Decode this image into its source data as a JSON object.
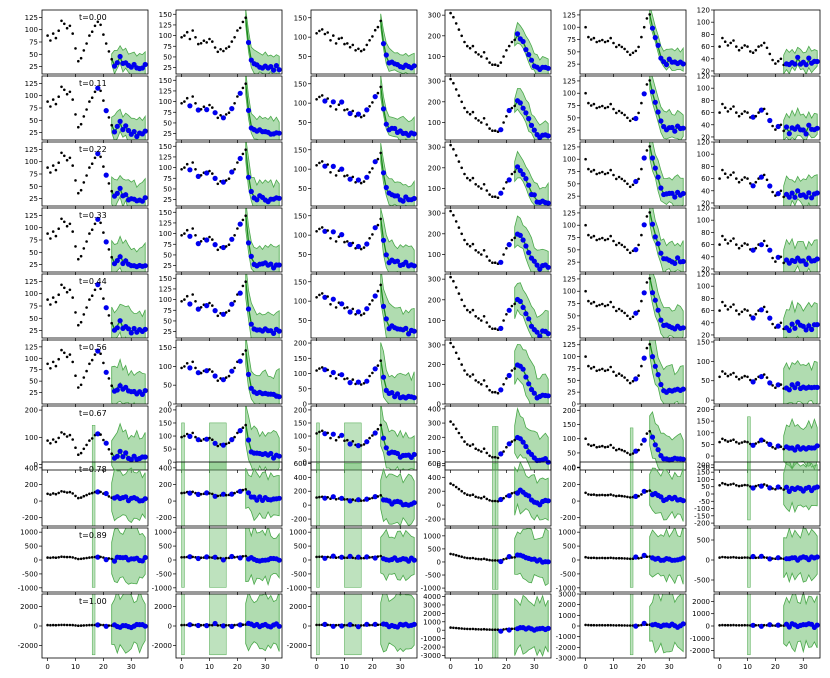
{
  "figure": {
    "rows": 10,
    "cols": 6,
    "row_labels": [
      "t=0.00",
      "t=0.11",
      "t=0.22",
      "t=0.33",
      "t=0.44",
      "t=0.56",
      "t=0.67",
      "t=0.78",
      "t=0.89",
      "t=1.00"
    ],
    "colors": {
      "black_points": "#000000",
      "blue_points": "#0000ee",
      "band_fill": "#6fbf6f",
      "band_stroke": "#4aa84a",
      "mean_line": "#1a8a1a",
      "axis": "#000000"
    }
  },
  "chart_data": {
    "type": "scatter",
    "title": "",
    "xlabel": "",
    "ylabel": "",
    "grid": false,
    "x_ticks": [
      0,
      10,
      20,
      30
    ],
    "xlim": [
      -2,
      36
    ],
    "series_columns": [
      {
        "observed": [
          88,
          78,
          92,
          83,
          98,
          118,
          112,
          103,
          108,
          92,
          62,
          36,
          42,
          58,
          72,
          88,
          96,
          108,
          116,
          110,
          90,
          72,
          56,
          40,
          28,
          34,
          44,
          30,
          36,
          26,
          24,
          26,
          20,
          24,
          22,
          26
        ],
        "forecast_window": [
          16,
          35
        ],
        "forecast_start": 24
      },
      {
        "observed": [
          96,
          100,
          108,
          92,
          112,
          96,
          80,
          82,
          88,
          84,
          92,
          86,
          72,
          62,
          68,
          64,
          70,
          74,
          86,
          96,
          112,
          118,
          132,
          142,
          80,
          42,
          32,
          28,
          30,
          26,
          28,
          24,
          28,
          22,
          26,
          24
        ],
        "forecast_window": [
          0,
          35
        ],
        "forecast_start": 24
      },
      {
        "observed": [
          110,
          116,
          120,
          108,
          112,
          92,
          104,
          84,
          96,
          98,
          82,
          84,
          74,
          80,
          66,
          70,
          64,
          68,
          80,
          92,
          102,
          118,
          126,
          142,
          86,
          50,
          34,
          32,
          30,
          28,
          24,
          22,
          26,
          20,
          22,
          24
        ],
        "forecast_window": [
          0,
          35
        ],
        "forecast_start": 24
      },
      {
        "observed": [
          310,
          290,
          260,
          230,
          200,
          170,
          150,
          140,
          150,
          120,
          110,
          100,
          120,
          90,
          70,
          60,
          60,
          55,
          70,
          100,
          130,
          150,
          170,
          180,
          200,
          190,
          170,
          140,
          110,
          80,
          60,
          40,
          30,
          40,
          40,
          35
        ],
        "forecast_window": [
          15,
          35
        ],
        "forecast_start": 24
      },
      {
        "observed": [
          100,
          80,
          75,
          78,
          70,
          72,
          74,
          70,
          72,
          78,
          68,
          60,
          64,
          60,
          56,
          50,
          44,
          48,
          52,
          60,
          80,
          100,
          118,
          126,
          100,
          80,
          60,
          40,
          30,
          28,
          32,
          28,
          26,
          30,
          26,
          28
        ],
        "forecast_window": [
          16,
          35
        ],
        "forecast_start": 24
      },
      {
        "observed": [
          60,
          74,
          68,
          62,
          66,
          70,
          60,
          54,
          58,
          62,
          60,
          52,
          50,
          54,
          60,
          62,
          66,
          58,
          48,
          38,
          32,
          36,
          40,
          30,
          34,
          28,
          36,
          30,
          40,
          34,
          32,
          28,
          38,
          30,
          34,
          36
        ],
        "forecast_window": [
          10,
          35
        ],
        "forecast_start": 24
      }
    ],
    "panels": [
      [
        {
          "ylim": [
            10,
            140
          ],
          "yticks": [
            25,
            50,
            75,
            100,
            125
          ]
        },
        {
          "ylim": [
            10,
            160
          ],
          "yticks": [
            25,
            50,
            75,
            100,
            125,
            150
          ]
        },
        {
          "ylim": [
            5,
            170
          ],
          "yticks": [
            50,
            100,
            150
          ]
        },
        {
          "ylim": [
            15,
            325
          ],
          "yticks": [
            100,
            200,
            300
          ]
        },
        {
          "ylim": [
            5,
            135
          ],
          "yticks": [
            25,
            50,
            75,
            100,
            125
          ]
        },
        {
          "ylim": [
            15,
            120
          ],
          "yticks": [
            20,
            40,
            60,
            80,
            100,
            120
          ]
        }
      ],
      [
        {
          "ylim": [
            10,
            140
          ],
          "yticks": [
            25,
            50,
            75,
            100,
            125
          ]
        },
        {
          "ylim": [
            10,
            160
          ],
          "yticks": [
            25,
            50,
            75,
            100,
            125,
            150
          ]
        },
        {
          "ylim": [
            5,
            170
          ],
          "yticks": [
            50,
            100,
            150
          ]
        },
        {
          "ylim": [
            15,
            325
          ],
          "yticks": [
            100,
            200,
            300
          ]
        },
        {
          "ylim": [
            5,
            135
          ],
          "yticks": [
            25,
            50,
            75,
            100,
            125
          ]
        },
        {
          "ylim": [
            15,
            120
          ],
          "yticks": [
            20,
            40,
            60,
            80,
            100,
            120
          ]
        }
      ],
      [
        {
          "ylim": [
            10,
            140
          ],
          "yticks": [
            25,
            50,
            75,
            100,
            125
          ]
        },
        {
          "ylim": [
            10,
            160
          ],
          "yticks": [
            25,
            50,
            75,
            100,
            125,
            150
          ]
        },
        {
          "ylim": [
            5,
            170
          ],
          "yticks": [
            50,
            100,
            150
          ]
        },
        {
          "ylim": [
            15,
            325
          ],
          "yticks": [
            100,
            200,
            300
          ]
        },
        {
          "ylim": [
            5,
            135
          ],
          "yticks": [
            25,
            50,
            75,
            100,
            125
          ]
        },
        {
          "ylim": [
            15,
            120
          ],
          "yticks": [
            20,
            40,
            60,
            80,
            100,
            120
          ]
        }
      ],
      [
        {
          "ylim": [
            10,
            140
          ],
          "yticks": [
            25,
            50,
            75,
            100,
            125
          ]
        },
        {
          "ylim": [
            10,
            160
          ],
          "yticks": [
            25,
            50,
            75,
            100,
            125,
            150
          ]
        },
        {
          "ylim": [
            5,
            170
          ],
          "yticks": [
            50,
            100,
            150
          ]
        },
        {
          "ylim": [
            15,
            325
          ],
          "yticks": [
            100,
            200,
            300
          ]
        },
        {
          "ylim": [
            5,
            135
          ],
          "yticks": [
            25,
            50,
            75,
            100,
            125
          ]
        },
        {
          "ylim": [
            15,
            120
          ],
          "yticks": [
            20,
            40,
            60,
            80,
            100,
            120
          ]
        }
      ],
      [
        {
          "ylim": [
            10,
            140
          ],
          "yticks": [
            25,
            50,
            75,
            100,
            125
          ]
        },
        {
          "ylim": [
            10,
            160
          ],
          "yticks": [
            25,
            50,
            75,
            100,
            125,
            150
          ]
        },
        {
          "ylim": [
            5,
            170
          ],
          "yticks": [
            50,
            100,
            150
          ]
        },
        {
          "ylim": [
            15,
            325
          ],
          "yticks": [
            100,
            200,
            300
          ]
        },
        {
          "ylim": [
            5,
            135
          ],
          "yticks": [
            25,
            50,
            75,
            100,
            125
          ]
        },
        {
          "ylim": [
            15,
            120
          ],
          "yticks": [
            20,
            40,
            60,
            80,
            100,
            120
          ]
        }
      ],
      [
        {
          "ylim": [
            0,
            140
          ],
          "yticks": [
            25,
            50,
            75,
            100,
            125
          ]
        },
        {
          "ylim": [
            0,
            170
          ],
          "yticks": [
            0,
            50,
            100,
            150
          ]
        },
        {
          "ylim": [
            0,
            210
          ],
          "yticks": [
            0,
            50,
            100,
            150,
            200
          ]
        },
        {
          "ylim": [
            0,
            325
          ],
          "yticks": [
            0,
            100,
            200,
            300
          ]
        },
        {
          "ylim": [
            0,
            135
          ],
          "yticks": [
            0,
            25,
            50,
            75,
            100,
            125
          ]
        },
        {
          "ylim": [
            -10,
            155
          ],
          "yticks": [
            0,
            50,
            100,
            150
          ]
        }
      ],
      [
        {
          "ylim": [
            -20,
            215
          ],
          "yticks": [
            0,
            100,
            200
          ]
        },
        {
          "ylim": [
            -30,
            215
          ],
          "yticks": [
            0,
            50,
            100,
            150,
            200
          ]
        },
        {
          "ylim": [
            -30,
            215
          ],
          "yticks": [
            0,
            50,
            100,
            150,
            200
          ]
        },
        {
          "ylim": [
            -30,
            420
          ],
          "yticks": [
            0,
            100,
            200,
            300,
            400
          ]
        },
        {
          "ylim": [
            -10,
            215
          ],
          "yticks": [
            0,
            50,
            100,
            150,
            200
          ]
        },
        {
          "ylim": [
            -60,
            215
          ],
          "yticks": [
            -50,
            0,
            50,
            100,
            150,
            200
          ]
        }
      ],
      [
        {
          "ylim": [
            -300,
            470
          ],
          "yticks": [
            -200,
            0,
            200,
            400
          ]
        },
        {
          "ylim": [
            -300,
            470
          ],
          "yticks": [
            -200,
            0,
            200,
            400
          ]
        },
        {
          "ylim": [
            -300,
            620
          ],
          "yticks": [
            -200,
            0,
            200,
            400,
            600
          ]
        },
        {
          "ylim": [
            -300,
            620
          ],
          "yticks": [
            -200,
            0,
            200,
            400,
            600
          ]
        },
        {
          "ylim": [
            -300,
            470
          ],
          "yticks": [
            -200,
            0,
            200,
            400
          ]
        },
        {
          "ylim": [
            -220,
            220
          ],
          "yticks": [
            -200,
            -150,
            -100,
            -50,
            0,
            50,
            100,
            150,
            200
          ]
        }
      ],
      [
        {
          "ylim": [
            -1150,
            1150
          ],
          "yticks": [
            -1000,
            -500,
            0,
            500,
            1000
          ]
        },
        {
          "ylim": [
            -1150,
            1150
          ],
          "yticks": [
            -1000,
            -500,
            0,
            500,
            1000
          ]
        },
        {
          "ylim": [
            -1150,
            1150
          ],
          "yticks": [
            -1000,
            -500,
            0,
            500,
            1000
          ]
        },
        {
          "ylim": [
            -1150,
            1300
          ],
          "yticks": [
            -1000,
            -500,
            0,
            500,
            1000
          ]
        },
        {
          "ylim": [
            -1150,
            1150
          ],
          "yticks": [
            -1000,
            -500,
            0,
            500,
            1000
          ]
        },
        {
          "ylim": [
            -800,
            800
          ],
          "yticks": [
            -500,
            0,
            500
          ]
        }
      ],
      [
        {
          "ylim": [
            -3300,
            3300
          ],
          "yticks": [
            -2000,
            0,
            2000
          ]
        },
        {
          "ylim": [
            -3300,
            3300
          ],
          "yticks": [
            -2000,
            0,
            2000
          ]
        },
        {
          "ylim": [
            -3300,
            3300
          ],
          "yticks": [
            -2000,
            0,
            2000
          ]
        },
        {
          "ylim": [
            -3300,
            4300
          ],
          "yticks": [
            -3000,
            -2000,
            -1000,
            0,
            1000,
            2000,
            3000,
            4000
          ]
        },
        {
          "ylim": [
            -3000,
            3000
          ],
          "yticks": [
            -3000,
            -2000,
            -1000,
            0,
            1000,
            2000,
            3000
          ]
        },
        {
          "ylim": [
            -2600,
            2600
          ],
          "yticks": [
            -2000,
            -1000,
            0,
            1000,
            2000
          ]
        }
      ]
    ]
  }
}
